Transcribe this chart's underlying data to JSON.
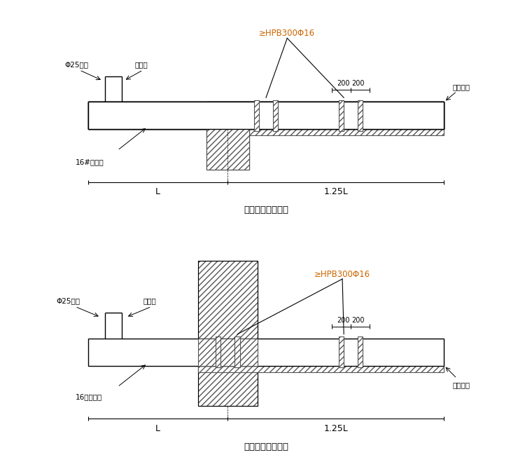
{
  "fig_width": 7.6,
  "fig_height": 6.79,
  "bg_color": "#ffffff",
  "line_color": "#000000",
  "hatch_color": "#555555",
  "title1": "悬挑钢梁楼面构造",
  "title2": "悬挑钢梁穿墙构造",
  "label_hpb1": "≥HPB300Φ16",
  "label_hpb2": "≥HPB300Φ16",
  "label_phi25_1": "Φ25钢筋",
  "label_tongkuan_1": "同梁宽",
  "label_16h_1": "16#工字钢",
  "label_mukuaijin_1": "木楔塞紧",
  "label_L1": "L",
  "label_125L1": "1.25L",
  "label_200a1": "200",
  "label_200b1": "200",
  "label_phi25_2": "Φ25钢筋",
  "label_tongkuan_2": "同梁宽",
  "label_16h_2": "16号工字钢",
  "label_mukuaijin_2": "木楔塞紧",
  "label_L2": "L",
  "label_125L2": "1.25L",
  "label_200a2": "200",
  "label_200b2": "200"
}
